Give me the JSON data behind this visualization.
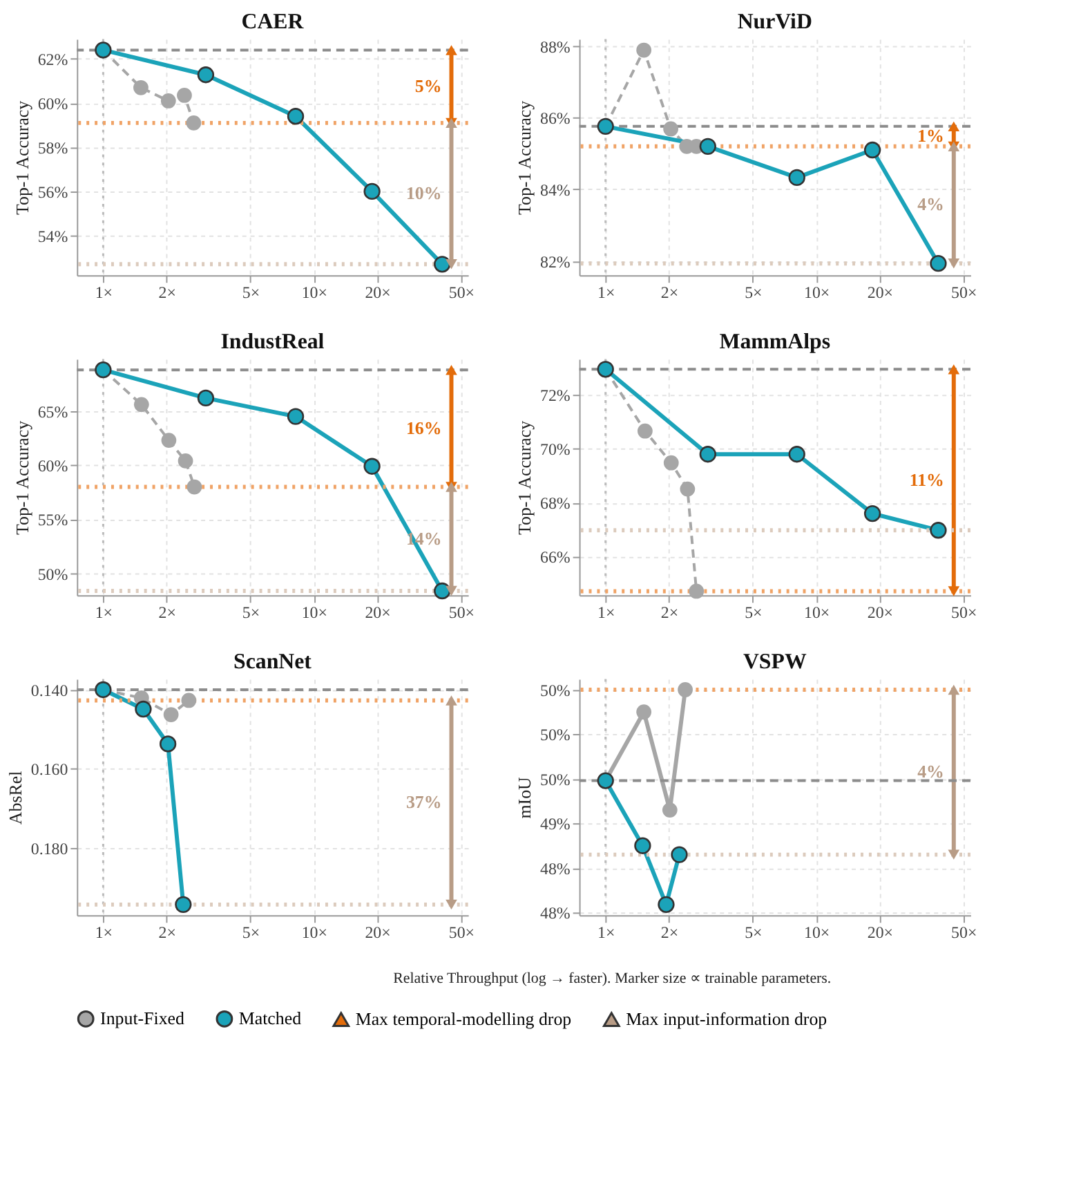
{
  "chart_data": [
    {
      "type": "line",
      "title": "CAER",
      "ylabel": "Top-1 Accuracy",
      "log": "x",
      "grid": true,
      "legend": "bottom",
      "xlim": [
        0.75,
        54
      ],
      "xticks": [
        {
          "value": 1,
          "label": "1×"
        },
        {
          "value": 2,
          "label": "2×"
        },
        {
          "value": 5,
          "label": "5×"
        },
        {
          "value": 10,
          "label": "10×"
        },
        {
          "value": 20,
          "label": "20×"
        },
        {
          "value": 50,
          "label": "50×"
        }
      ],
      "ylim": [
        52.2,
        62.9
      ],
      "yticks": [
        {
          "value": 54,
          "label": "54%"
        },
        {
          "value": 56,
          "label": "56%"
        },
        {
          "value": 58,
          "label": "58%"
        },
        {
          "value": 60,
          "label": "60%"
        },
        {
          "value": 62,
          "label": "62%"
        }
      ],
      "series": [
        {
          "name": "Input-Fixed",
          "color": "#a6a6a6",
          "line_style": "dashed",
          "marker": "circle",
          "x": [
            1,
            1.51,
            2.04,
            2.43,
            2.69
          ],
          "values": [
            62.4,
            60.7,
            60.1,
            60.35,
            59.1
          ]
        },
        {
          "name": "Matched",
          "color": "#1ba3b9",
          "line_style": "solid",
          "marker": "circle",
          "x": [
            1,
            3.07,
            8.2,
            18.9,
            40.7
          ],
          "values": [
            62.4,
            61.28,
            59.4,
            56.0,
            52.7
          ]
        },
        {
          "name": "Max temporal-modelling drop",
          "color": "#e36c0a",
          "line_style": "solid",
          "marker": "triangle",
          "x": [
            45,
            45
          ],
          "values": [
            62.4,
            59.1
          ]
        },
        {
          "name": "Max input-information drop",
          "color": "#b89c86",
          "line_style": "solid",
          "marker": "triangle",
          "x": [
            45,
            45
          ],
          "values": [
            59.1,
            52.7
          ]
        }
      ],
      "ref_lines": [
        {
          "axis": "x",
          "value": 1,
          "color": "#bbbbbb",
          "line_style": "dotted"
        },
        {
          "axis": "y",
          "value": 62.4,
          "color": "#8c8c8c",
          "line_style": "dashed"
        },
        {
          "axis": "y",
          "value": 59.1,
          "color": "#f0a366",
          "line_style": "dotted"
        },
        {
          "axis": "y",
          "value": 52.7,
          "color": "#dccbbd",
          "line_style": "dotted"
        }
      ],
      "annotations": [
        "5%",
        "10%"
      ]
    },
    {
      "type": "line",
      "title": "NurViD",
      "ylabel": "Top-1 Accuracy",
      "log": "x",
      "grid": true,
      "legend": "bottom",
      "xlim": [
        0.75,
        54
      ],
      "xticks": [
        {
          "value": 1,
          "label": "1×"
        },
        {
          "value": 2,
          "label": "2×"
        },
        {
          "value": 5,
          "label": "5×"
        },
        {
          "value": 10,
          "label": "10×"
        },
        {
          "value": 20,
          "label": "20×"
        },
        {
          "value": 50,
          "label": "50×"
        }
      ],
      "ylim": [
        81.6,
        88.2
      ],
      "yticks": [
        {
          "value": 82,
          "label": "82%"
        },
        {
          "value": 84,
          "label": "84%"
        },
        {
          "value": 86,
          "label": "86%"
        },
        {
          "value": 88,
          "label": "88%"
        }
      ],
      "series": [
        {
          "name": "Input-Fixed",
          "color": "#a6a6a6",
          "line_style": "dashed",
          "marker": "circle",
          "x": [
            1,
            1.52,
            2.04,
            2.43,
            2.7
          ],
          "values": [
            85.76,
            87.89,
            85.69,
            85.2,
            85.2
          ]
        },
        {
          "name": "Matched",
          "color": "#1ba3b9",
          "line_style": "solid",
          "marker": "circle",
          "x": [
            1,
            3.06,
            8.1,
            18.5,
            38
          ],
          "values": [
            85.76,
            85.2,
            84.33,
            85.1,
            81.93
          ]
        },
        {
          "name": "Max temporal-modelling drop",
          "color": "#e36c0a",
          "line_style": "solid",
          "marker": "triangle",
          "x": [
            45,
            45
          ],
          "values": [
            85.76,
            85.2
          ]
        },
        {
          "name": "Max input-information drop",
          "color": "#b89c86",
          "line_style": "solid",
          "marker": "triangle",
          "x": [
            45,
            45
          ],
          "values": [
            85.2,
            81.93
          ]
        }
      ],
      "ref_lines": [
        {
          "axis": "x",
          "value": 1,
          "color": "#bbbbbb",
          "line_style": "dotted"
        },
        {
          "axis": "y",
          "value": 85.76,
          "color": "#8c8c8c",
          "line_style": "dashed"
        },
        {
          "axis": "y",
          "value": 85.2,
          "color": "#f0a366",
          "line_style": "dotted"
        },
        {
          "axis": "y",
          "value": 81.93,
          "color": "#dccbbd",
          "line_style": "dotted"
        }
      ],
      "annotations": [
        "1%",
        "4%"
      ]
    },
    {
      "type": "line",
      "title": "IndustReal",
      "ylabel": "Top-1 Accuracy",
      "log": "x",
      "grid": true,
      "legend": "bottom",
      "xlim": [
        0.75,
        54
      ],
      "xticks": [
        {
          "value": 1,
          "label": "1×"
        },
        {
          "value": 2,
          "label": "2×"
        },
        {
          "value": 5,
          "label": "5×"
        },
        {
          "value": 10,
          "label": "10×"
        },
        {
          "value": 20,
          "label": "20×"
        },
        {
          "value": 50,
          "label": "50×"
        }
      ],
      "ylim": [
        48.0,
        69.8
      ],
      "yticks": [
        {
          "value": 50,
          "label": "50%"
        },
        {
          "value": 55,
          "label": "55%"
        },
        {
          "value": 60,
          "label": "60%"
        },
        {
          "value": 65,
          "label": "65%"
        }
      ],
      "series": [
        {
          "name": "Input-Fixed",
          "color": "#a6a6a6",
          "line_style": "dashed",
          "marker": "circle",
          "x": [
            1,
            1.52,
            2.05,
            2.46,
            2.71
          ],
          "values": [
            68.8,
            65.6,
            62.3,
            60.4,
            58.0
          ]
        },
        {
          "name": "Matched",
          "color": "#1ba3b9",
          "line_style": "solid",
          "marker": "circle",
          "x": [
            1,
            3.07,
            8.2,
            18.9,
            40.7
          ],
          "values": [
            68.8,
            66.2,
            64.5,
            59.9,
            48.4
          ]
        },
        {
          "name": "Max temporal-modelling drop",
          "color": "#e36c0a",
          "line_style": "solid",
          "marker": "triangle",
          "x": [
            45,
            45
          ],
          "values": [
            68.8,
            58.0
          ]
        },
        {
          "name": "Max input-information drop",
          "color": "#b89c86",
          "line_style": "solid",
          "marker": "triangle",
          "x": [
            45,
            45
          ],
          "values": [
            58.0,
            48.4
          ]
        }
      ],
      "ref_lines": [
        {
          "axis": "x",
          "value": 1,
          "color": "#bbbbbb",
          "line_style": "dotted"
        },
        {
          "axis": "y",
          "value": 68.8,
          "color": "#8c8c8c",
          "line_style": "dashed"
        },
        {
          "axis": "y",
          "value": 58.0,
          "color": "#f0a366",
          "line_style": "dotted"
        },
        {
          "axis": "y",
          "value": 48.4,
          "color": "#dccbbd",
          "line_style": "dotted"
        }
      ],
      "annotations": [
        "16%",
        "14%"
      ]
    },
    {
      "type": "line",
      "title": "MammAlps",
      "ylabel": "Top-1 Accuracy",
      "log": "x",
      "grid": true,
      "legend": "bottom",
      "xlim": [
        0.75,
        54
      ],
      "xticks": [
        {
          "value": 1,
          "label": "1×"
        },
        {
          "value": 2,
          "label": "2×"
        },
        {
          "value": 5,
          "label": "5×"
        },
        {
          "value": 10,
          "label": "10×"
        },
        {
          "value": 20,
          "label": "20×"
        },
        {
          "value": 50,
          "label": "50×"
        }
      ],
      "ylim": [
        64.57,
        73.33
      ],
      "yticks": [
        {
          "value": 66,
          "label": "66%"
        },
        {
          "value": 68,
          "label": "68%"
        },
        {
          "value": 70,
          "label": "70%"
        },
        {
          "value": 72,
          "label": "72%"
        }
      ],
      "series": [
        {
          "name": "Input-Fixed",
          "color": "#a6a6a6",
          "line_style": "dashed",
          "marker": "circle",
          "x": [
            1,
            1.54,
            2.05,
            2.45,
            2.7
          ],
          "values": [
            72.95,
            70.66,
            69.48,
            68.51,
            64.72
          ]
        },
        {
          "name": "Matched",
          "color": "#1ba3b9",
          "line_style": "solid",
          "marker": "circle",
          "x": [
            1,
            3.06,
            8.1,
            18.5,
            38
          ],
          "values": [
            72.95,
            69.8,
            69.8,
            67.6,
            66.98
          ]
        },
        {
          "name": "Max temporal-modelling drop",
          "color": "#e36c0a",
          "line_style": "solid",
          "marker": "triangle",
          "x": [
            45,
            45
          ],
          "values": [
            72.95,
            64.72
          ]
        }
      ],
      "ref_lines": [
        {
          "axis": "x",
          "value": 1,
          "color": "#bbbbbb",
          "line_style": "dotted"
        },
        {
          "axis": "y",
          "value": 72.95,
          "color": "#8c8c8c",
          "line_style": "dashed"
        },
        {
          "axis": "y",
          "value": 64.72,
          "color": "#f0a366",
          "line_style": "dotted"
        },
        {
          "axis": "y",
          "value": 66.98,
          "color": "#dccbbd",
          "line_style": "dotted"
        }
      ],
      "annotations": [
        "11%"
      ]
    },
    {
      "type": "line",
      "title": "ScanNet",
      "ylabel": "AbsRel",
      "log": "x",
      "grid": true,
      "legend": "bottom",
      "xlim": [
        0.75,
        54
      ],
      "xticks": [
        {
          "value": 1,
          "label": "1×"
        },
        {
          "value": 2,
          "label": "2×"
        },
        {
          "value": 5,
          "label": "5×"
        },
        {
          "value": 10,
          "label": "10×"
        },
        {
          "value": 20,
          "label": "20×"
        },
        {
          "value": 50,
          "label": "50×"
        }
      ],
      "ylim": [
        0.197,
        0.1373
      ],
      "yticks": [
        {
          "value": 0.14,
          "label": "0.140"
        },
        {
          "value": 0.16,
          "label": "0.160"
        },
        {
          "value": 0.18,
          "label": "0.180"
        }
      ],
      "series": [
        {
          "name": "Input-Fixed",
          "color": "#a6a6a6",
          "line_style": "dashed",
          "marker": "circle",
          "x": [
            1,
            1.52,
            2.1,
            2.55
          ],
          "values": [
            0.14,
            0.1421,
            0.1463,
            0.1427
          ]
        },
        {
          "name": "Matched",
          "color": "#1ba3b9",
          "line_style": "solid",
          "marker": "circle",
          "x": [
            1,
            1.55,
            2.03,
            2.4
          ],
          "values": [
            0.14,
            0.1449,
            0.1537,
            0.1943
          ]
        },
        {
          "name": "Max input-information drop",
          "color": "#b89c86",
          "line_style": "solid",
          "marker": "triangle",
          "x": [
            45,
            45
          ],
          "values": [
            0.1427,
            0.1943
          ]
        }
      ],
      "ref_lines": [
        {
          "axis": "x",
          "value": 1,
          "color": "#bbbbbb",
          "line_style": "dotted"
        },
        {
          "axis": "y",
          "value": 0.14,
          "color": "#8c8c8c",
          "line_style": "dashed"
        },
        {
          "axis": "y",
          "value": 0.1427,
          "color": "#f0a366",
          "line_style": "dotted"
        },
        {
          "axis": "y",
          "value": 0.1943,
          "color": "#dccbbd",
          "line_style": "dotted"
        }
      ],
      "annotations": [
        "37%"
      ]
    },
    {
      "type": "line",
      "title": "VSPW",
      "ylabel": "mIoU",
      "log": "x",
      "grid": true,
      "legend": "bottom",
      "xlim": [
        0.75,
        54
      ],
      "xticks": [
        {
          "value": 1,
          "label": "1×"
        },
        {
          "value": 2,
          "label": "2×"
        },
        {
          "value": 5,
          "label": "5×"
        },
        {
          "value": 10,
          "label": "10×"
        },
        {
          "value": 20,
          "label": "20×"
        },
        {
          "value": 50,
          "label": "50×"
        }
      ],
      "ylim": [
        47.97,
        50.62
      ],
      "yticks": [
        {
          "value": 48.0,
          "label": "48%"
        },
        {
          "value": 48.5,
          "label": "48%"
        },
        {
          "value": 49.0,
          "label": "49%"
        },
        {
          "value": 49.5,
          "label": "50%"
        },
        {
          "value": 50.0,
          "label": "50%"
        },
        {
          "value": 50.5,
          "label": "50%"
        }
      ],
      "series": [
        {
          "name": "Input-Fixed",
          "color": "#a6a6a6",
          "line_style": "solid",
          "marker": "circle",
          "x": [
            1,
            1.52,
            2.02,
            2.39
          ],
          "values": [
            49.48,
            50.25,
            49.15,
            50.5
          ]
        },
        {
          "name": "Matched",
          "color": "#1ba3b9",
          "line_style": "solid",
          "marker": "circle",
          "x": [
            1,
            1.5,
            1.94,
            2.24
          ],
          "values": [
            49.48,
            48.75,
            48.09,
            48.65
          ]
        },
        {
          "name": "Max input-information drop",
          "color": "#b89c86",
          "line_style": "solid",
          "marker": "triangle",
          "x": [
            45,
            45
          ],
          "values": [
            50.5,
            48.65
          ]
        }
      ],
      "ref_lines": [
        {
          "axis": "x",
          "value": 1,
          "color": "#bbbbbb",
          "line_style": "dotted"
        },
        {
          "axis": "y",
          "value": 49.48,
          "color": "#8c8c8c",
          "line_style": "dashed"
        },
        {
          "axis": "y",
          "value": 50.5,
          "color": "#f0a366",
          "line_style": "dotted"
        },
        {
          "axis": "y",
          "value": 48.65,
          "color": "#dccbbd",
          "line_style": "dotted"
        }
      ],
      "annotations": [
        "4%",
        "Relative Throughput (log → faster).  Marker size ∝ trainable parameters."
      ]
    }
  ]
}
